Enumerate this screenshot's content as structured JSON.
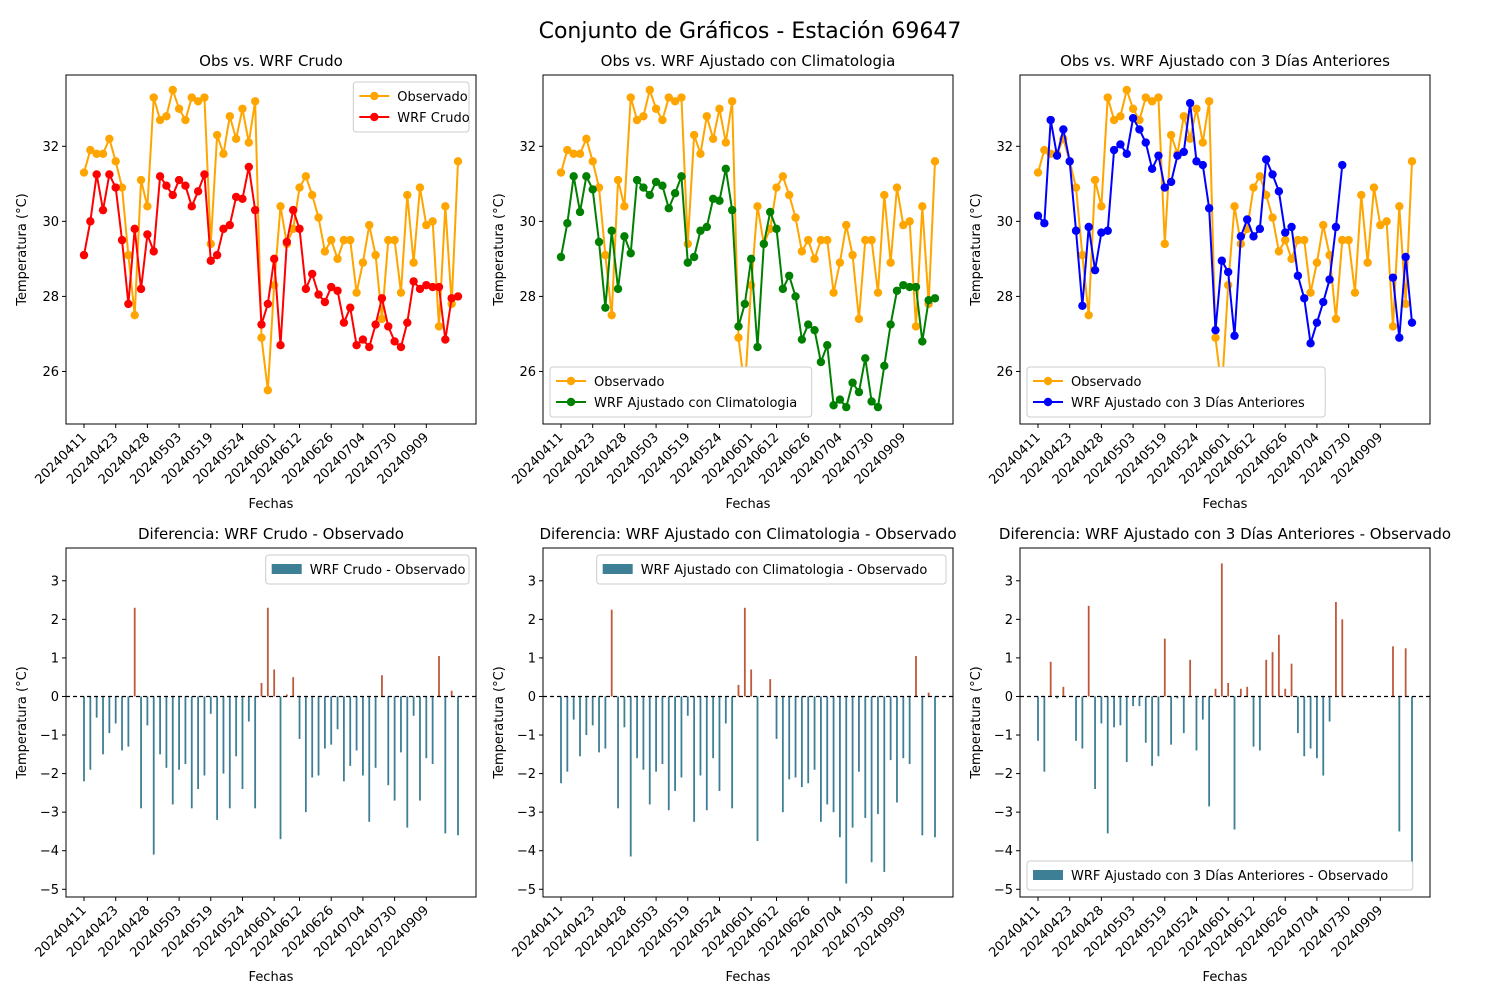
{
  "figure_title": "Conjunto de Gráficos - Estación 69647",
  "colors": {
    "observed": "#ffa500",
    "wrf_crudo": "#ff0000",
    "wrf_clima": "#008000",
    "wrf_3dias": "#0000ff",
    "bar_negative": "#3d7f95",
    "bar_positive": "#c0583a",
    "zero_line": "#000000"
  },
  "chart_data": [
    {
      "type": "line",
      "title": "Obs vs. WRF Crudo",
      "xlabel": "Fechas",
      "ylabel": "Temperatura (°C)",
      "ylim": [
        24.6,
        33.9
      ],
      "yticks": [
        26,
        28,
        30,
        32
      ],
      "xtick_labels": [
        "20240411",
        "20240423",
        "20240428",
        "20240503",
        "20240519",
        "20240524",
        "20240601",
        "20240612",
        "20240626",
        "20240704",
        "20240730",
        "20240909"
      ],
      "legend_position": "upper right",
      "series": [
        {
          "name": "Observado",
          "color_key": "observed",
          "values": [
            31.3,
            31.9,
            31.8,
            31.8,
            32.2,
            31.6,
            30.9,
            29.1,
            27.5,
            31.1,
            30.4,
            33.3,
            32.7,
            32.8,
            33.5,
            33.0,
            32.7,
            33.3,
            33.2,
            33.3,
            29.4,
            32.3,
            31.8,
            32.8,
            32.2,
            33.0,
            32.1,
            33.2,
            26.9,
            25.5,
            28.3,
            30.4,
            29.4,
            29.8,
            30.9,
            31.2,
            30.7,
            30.1,
            29.2,
            29.5,
            29.0,
            29.5,
            29.5,
            28.1,
            28.9,
            29.9,
            29.1,
            27.4,
            29.5,
            29.5,
            28.1,
            30.7,
            28.9,
            30.9,
            29.9,
            30.0,
            27.2,
            30.4,
            27.8,
            31.6
          ]
        },
        {
          "name": "WRF Crudo",
          "color_key": "wrf_crudo",
          "values": [
            29.1,
            30.0,
            31.25,
            30.3,
            31.25,
            30.9,
            29.5,
            27.8,
            29.8,
            28.2,
            29.65,
            29.2,
            31.2,
            30.95,
            30.7,
            31.1,
            30.95,
            30.4,
            30.8,
            31.25,
            28.95,
            29.1,
            29.8,
            29.9,
            30.65,
            30.6,
            31.45,
            30.3,
            27.25,
            27.8,
            29.0,
            26.7,
            29.45,
            30.3,
            29.8,
            28.2,
            28.6,
            28.05,
            27.85,
            28.25,
            28.15,
            27.3,
            27.7,
            26.7,
            26.85,
            26.65,
            27.25,
            27.95,
            27.2,
            26.8,
            26.65,
            27.3,
            28.4,
            28.2,
            28.3,
            28.25,
            28.25,
            26.85,
            27.95,
            28.0
          ]
        }
      ]
    },
    {
      "type": "line",
      "title": "Obs vs. WRF Ajustado con Climatologia",
      "xlabel": "Fechas",
      "ylabel": "Temperatura (°C)",
      "ylim": [
        24.6,
        33.9
      ],
      "yticks": [
        26,
        28,
        30,
        32
      ],
      "xtick_labels": [
        "20240411",
        "20240423",
        "20240428",
        "20240503",
        "20240519",
        "20240524",
        "20240601",
        "20240612",
        "20240626",
        "20240704",
        "20240730",
        "20240909"
      ],
      "legend_position": "lower left",
      "series": [
        {
          "name": "Observado",
          "color_key": "observed",
          "values": [
            31.3,
            31.9,
            31.8,
            31.8,
            32.2,
            31.6,
            30.9,
            29.1,
            27.5,
            31.1,
            30.4,
            33.3,
            32.7,
            32.8,
            33.5,
            33.0,
            32.7,
            33.3,
            33.2,
            33.3,
            29.4,
            32.3,
            31.8,
            32.8,
            32.2,
            33.0,
            32.1,
            33.2,
            26.9,
            25.5,
            28.3,
            30.4,
            29.4,
            29.8,
            30.9,
            31.2,
            30.7,
            30.1,
            29.2,
            29.5,
            29.0,
            29.5,
            29.5,
            28.1,
            28.9,
            29.9,
            29.1,
            27.4,
            29.5,
            29.5,
            28.1,
            30.7,
            28.9,
            30.9,
            29.9,
            30.0,
            27.2,
            30.4,
            27.8,
            31.6
          ]
        },
        {
          "name": "WRF Ajustado con Climatologia",
          "color_key": "wrf_clima",
          "values": [
            29.05,
            29.95,
            31.2,
            30.25,
            31.2,
            30.85,
            29.45,
            27.7,
            29.75,
            28.2,
            29.6,
            29.15,
            31.1,
            30.9,
            30.7,
            31.05,
            30.95,
            30.35,
            30.75,
            31.2,
            28.9,
            29.05,
            29.75,
            29.85,
            30.6,
            30.55,
            31.4,
            30.3,
            27.2,
            27.8,
            29.0,
            26.65,
            29.4,
            30.25,
            29.8,
            28.2,
            28.55,
            28.0,
            26.85,
            27.25,
            27.1,
            26.25,
            26.7,
            25.1,
            25.25,
            25.05,
            25.7,
            25.45,
            26.35,
            25.2,
            25.05,
            26.15,
            27.25,
            28.15,
            28.3,
            28.25,
            28.25,
            26.8,
            27.9,
            27.95
          ]
        }
      ]
    },
    {
      "type": "line",
      "title": "Obs vs. WRF Ajustado con 3 Días Anteriores",
      "xlabel": "Fechas",
      "ylabel": "Temperatura (°C)",
      "ylim": [
        24.6,
        33.9
      ],
      "yticks": [
        26,
        28,
        30,
        32
      ],
      "xtick_labels": [
        "20240411",
        "20240423",
        "20240428",
        "20240503",
        "20240519",
        "20240524",
        "20240601",
        "20240612",
        "20240626",
        "20240704",
        "20240730",
        "20240909"
      ],
      "legend_position": "lower left",
      "series": [
        {
          "name": "Observado",
          "color_key": "observed",
          "values": [
            31.3,
            31.9,
            31.8,
            31.8,
            32.2,
            31.6,
            30.9,
            29.1,
            27.5,
            31.1,
            30.4,
            33.3,
            32.7,
            32.8,
            33.5,
            33.0,
            32.7,
            33.3,
            33.2,
            33.3,
            29.4,
            32.3,
            31.8,
            32.8,
            32.2,
            33.0,
            32.1,
            33.2,
            26.9,
            25.5,
            28.3,
            30.4,
            29.4,
            29.8,
            30.9,
            31.2,
            30.7,
            30.1,
            29.2,
            29.5,
            29.0,
            29.5,
            29.5,
            28.1,
            28.9,
            29.9,
            29.1,
            27.4,
            29.5,
            29.5,
            28.1,
            30.7,
            28.9,
            30.9,
            29.9,
            30.0,
            27.2,
            30.4,
            27.8,
            31.6
          ]
        },
        {
          "name": "WRF Ajustado con 3 Días Anteriores",
          "color_key": "wrf_3dias",
          "values": [
            30.15,
            29.95,
            32.7,
            31.75,
            32.45,
            31.6,
            29.75,
            27.75,
            29.85,
            28.7,
            29.7,
            29.75,
            31.9,
            32.05,
            31.8,
            32.75,
            32.45,
            32.1,
            31.4,
            31.75,
            30.9,
            31.05,
            31.75,
            31.85,
            33.15,
            31.6,
            31.5,
            30.35,
            27.1,
            28.95,
            28.65,
            26.95,
            29.6,
            30.05,
            29.6,
            29.8,
            31.65,
            31.25,
            30.8,
            29.7,
            29.85,
            28.55,
            27.95,
            26.75,
            27.3,
            27.85,
            28.45,
            29.85,
            31.5,
            null,
            null,
            null,
            null,
            null,
            null,
            null,
            28.5,
            26.9,
            29.05,
            27.3
          ]
        }
      ]
    },
    {
      "type": "bar",
      "title": "Diferencia: WRF Crudo - Observado",
      "xlabel": "Fechas",
      "ylabel": "Temperatura (°C)",
      "ylim": [
        -5.2,
        3.85
      ],
      "yticks": [
        -5,
        -4,
        -3,
        -2,
        -1,
        0,
        1,
        2,
        3
      ],
      "xtick_labels": [
        "20240411",
        "20240423",
        "20240428",
        "20240503",
        "20240519",
        "20240524",
        "20240601",
        "20240612",
        "20240626",
        "20240704",
        "20240730",
        "20240909"
      ],
      "legend_position": "upper right",
      "series": [
        {
          "name": "WRF Crudo - Observado",
          "values": [
            -2.2,
            -1.9,
            -0.55,
            -1.5,
            -0.95,
            -0.7,
            -1.4,
            -1.3,
            2.3,
            -2.9,
            -0.75,
            -4.1,
            -1.5,
            -1.85,
            -2.8,
            -1.9,
            -1.75,
            -2.9,
            -2.4,
            -2.05,
            -0.45,
            -3.2,
            -2.0,
            -2.9,
            -1.55,
            -2.4,
            -0.65,
            -2.9,
            0.35,
            2.3,
            0.7,
            -3.7,
            0.05,
            0.5,
            -1.1,
            -3.0,
            -2.1,
            -2.05,
            -1.35,
            -1.25,
            -0.85,
            -2.2,
            -1.8,
            -1.4,
            -2.05,
            -3.25,
            -1.85,
            0.55,
            -2.3,
            -2.7,
            -1.45,
            -3.4,
            -0.5,
            -2.7,
            -1.6,
            -1.75,
            1.05,
            -3.55,
            0.15,
            -3.6
          ]
        }
      ]
    },
    {
      "type": "bar",
      "title": "Diferencia: WRF Ajustado con Climatologia - Observado",
      "xlabel": "Fechas",
      "ylabel": "Temperatura (°C)",
      "ylim": [
        -5.2,
        3.85
      ],
      "yticks": [
        -5,
        -4,
        -3,
        -2,
        -1,
        0,
        1,
        2,
        3
      ],
      "xtick_labels": [
        "20240411",
        "20240423",
        "20240428",
        "20240503",
        "20240519",
        "20240524",
        "20240601",
        "20240612",
        "20240626",
        "20240704",
        "20240730",
        "20240909"
      ],
      "legend_position": "upper right",
      "series": [
        {
          "name": "WRF Ajustado con Climatologia - Observado",
          "values": [
            -2.25,
            -1.95,
            -0.6,
            -1.55,
            -1.0,
            -0.75,
            -1.45,
            -1.35,
            2.25,
            -2.9,
            -0.8,
            -4.15,
            -1.6,
            -1.9,
            -2.8,
            -1.95,
            -1.75,
            -2.95,
            -2.45,
            -2.1,
            -0.5,
            -3.25,
            -2.05,
            -2.95,
            -1.6,
            -2.45,
            -0.7,
            -2.9,
            0.3,
            2.3,
            0.7,
            -3.75,
            0.0,
            0.45,
            -1.1,
            -3.0,
            -2.15,
            -2.1,
            -2.35,
            -2.25,
            -1.9,
            -3.25,
            -2.8,
            -3.0,
            -3.65,
            -4.85,
            -3.4,
            -1.95,
            -3.15,
            -4.3,
            -3.05,
            -4.55,
            -1.65,
            -2.75,
            -1.6,
            -1.75,
            1.05,
            -3.6,
            0.1,
            -3.65
          ]
        }
      ]
    },
    {
      "type": "bar",
      "title": "Diferencia: WRF Ajustado con 3 Días Anteriores - Observado",
      "xlabel": "Fechas",
      "ylabel": "Temperatura (°C)",
      "ylim": [
        -5.2,
        3.85
      ],
      "yticks": [
        -5,
        -4,
        -3,
        -2,
        -1,
        0,
        1,
        2,
        3
      ],
      "xtick_labels": [
        "20240411",
        "20240423",
        "20240428",
        "20240503",
        "20240519",
        "20240524",
        "20240601",
        "20240612",
        "20240626",
        "20240704",
        "20240730",
        "20240909"
      ],
      "legend_position": "lower left",
      "series": [
        {
          "name": "WRF Ajustado con 3 Días Anteriores - Observado",
          "values": [
            -1.15,
            -1.95,
            0.9,
            -0.05,
            0.25,
            0.0,
            -1.15,
            -1.35,
            2.35,
            -2.4,
            -0.7,
            -3.55,
            -0.8,
            -0.75,
            -1.7,
            -0.25,
            -0.25,
            -1.2,
            -1.8,
            -1.55,
            1.5,
            -1.25,
            -0.05,
            -0.95,
            0.95,
            -1.4,
            -0.6,
            -2.85,
            0.2,
            3.45,
            0.35,
            -3.45,
            0.2,
            0.25,
            -1.3,
            -1.4,
            0.95,
            1.15,
            1.6,
            0.2,
            0.85,
            -0.95,
            -1.55,
            -1.35,
            -1.6,
            -2.05,
            -0.65,
            2.45,
            2.0,
            null,
            null,
            null,
            null,
            null,
            null,
            null,
            1.3,
            -3.5,
            1.25,
            -4.3
          ]
        }
      ]
    }
  ]
}
